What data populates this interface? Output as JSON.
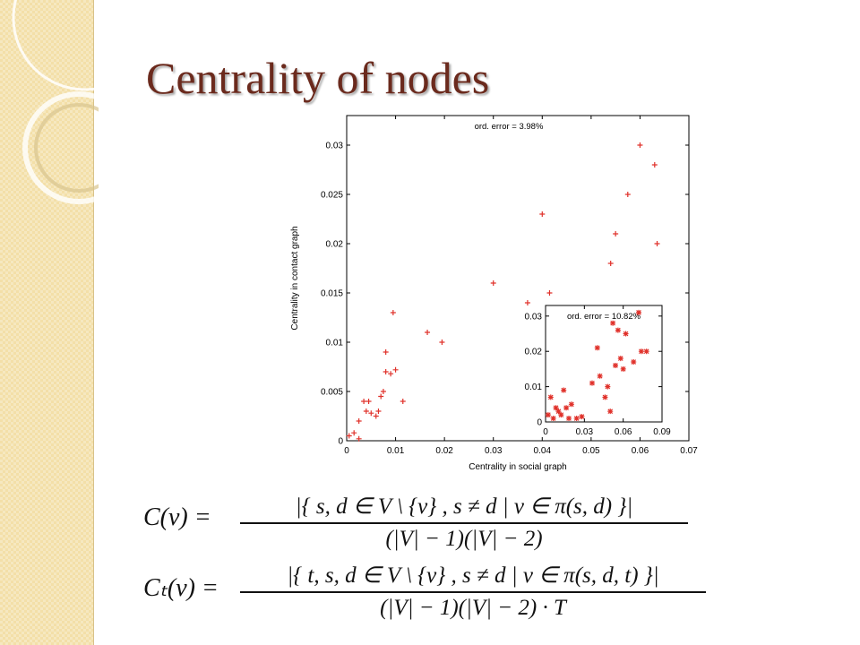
{
  "slide": {
    "title": "Centrality of nodes"
  },
  "equations": [
    {
      "lhs": "C(v) =",
      "numerator": "|{ s, d ∈ V \\ {v} , s ≠ d | v ∈ π(s, d) }|",
      "denominator": "(|V| − 1)(|V| − 2)"
    },
    {
      "lhs": "Cₜ(v) =",
      "numerator": "|{ t, s, d ∈ V \\ {v} , s ≠ d | v ∈ π(s, d, t) }|",
      "denominator": "(|V| − 1)(|V| − 2) · T"
    }
  ],
  "colors": {
    "marker": "#e0312a",
    "title": "#6b2a1d",
    "sidebar": "#f3dfa8"
  },
  "chart_data": [
    {
      "type": "scatter",
      "xlabel": "Centrality in social graph",
      "ylabel": "Centrality in contact graph",
      "xlim": [
        0,
        0.07
      ],
      "ylim": [
        0,
        0.033
      ],
      "xticks": [
        "0",
        "0.01",
        "0.02",
        "0.03",
        "0.04",
        "0.05",
        "0.06",
        "0.07"
      ],
      "yticks": [
        "0",
        "0.005",
        "0.01",
        "0.015",
        "0.02",
        "0.025",
        "0.03"
      ],
      "annotation": "ord. error = 3.98%",
      "marker": "+",
      "x": [
        0.0005,
        0.0015,
        0.0025,
        0.0025,
        0.0035,
        0.004,
        0.0045,
        0.005,
        0.006,
        0.0065,
        0.007,
        0.0075,
        0.008,
        0.008,
        0.009,
        0.0095,
        0.01,
        0.0115,
        0.0165,
        0.0195,
        0.03,
        0.037,
        0.04,
        0.0415,
        0.054,
        0.055,
        0.0575,
        0.06,
        0.063,
        0.0635
      ],
      "y": [
        0.0005,
        0.0008,
        0.0002,
        0.002,
        0.004,
        0.003,
        0.004,
        0.0028,
        0.0025,
        0.003,
        0.0045,
        0.005,
        0.009,
        0.007,
        0.0068,
        0.013,
        0.0072,
        0.004,
        0.011,
        0.01,
        0.016,
        0.014,
        0.023,
        0.015,
        0.018,
        0.021,
        0.025,
        0.03,
        0.028,
        0.02
      ]
    },
    {
      "type": "scatter",
      "xlim": [
        0,
        0.09
      ],
      "ylim": [
        0,
        0.033
      ],
      "xticks": [
        "0",
        "0.03",
        "0.06",
        "0.09"
      ],
      "yticks": [
        "0",
        "0.01",
        "0.02",
        "0.03"
      ],
      "annotation": "ord. error = 10.82%",
      "marker": "*",
      "x": [
        0.002,
        0.004,
        0.006,
        0.008,
        0.01,
        0.012,
        0.014,
        0.016,
        0.018,
        0.02,
        0.024,
        0.028,
        0.036,
        0.04,
        0.042,
        0.046,
        0.048,
        0.05,
        0.052,
        0.054,
        0.056,
        0.058,
        0.06,
        0.062,
        0.068,
        0.072,
        0.074,
        0.078
      ],
      "y": [
        0.002,
        0.007,
        0.001,
        0.004,
        0.003,
        0.002,
        0.009,
        0.004,
        0.001,
        0.005,
        0.001,
        0.0015,
        0.011,
        0.021,
        0.013,
        0.007,
        0.01,
        0.003,
        0.028,
        0.016,
        0.026,
        0.018,
        0.015,
        0.025,
        0.017,
        0.031,
        0.02,
        0.02
      ]
    }
  ]
}
